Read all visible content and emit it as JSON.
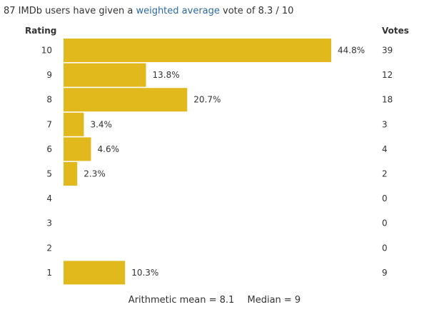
{
  "header": {
    "prefix": "87 IMDb users have given a",
    "link": "weighted average",
    "suffix": "vote of 8.3 / 10"
  },
  "columns": {
    "rating": "Rating",
    "votes": "Votes"
  },
  "footer": {
    "mean": "Arithmetic mean = 8.1",
    "median": "Median = 9"
  },
  "colors": {
    "bar": "#e2b91d",
    "text": "#333333",
    "link": "#2b6aa5"
  },
  "chart_data": {
    "type": "bar",
    "orientation": "horizontal",
    "categories": [
      "10",
      "9",
      "8",
      "7",
      "6",
      "5",
      "4",
      "3",
      "2",
      "1"
    ],
    "values": [
      44.8,
      13.8,
      20.7,
      3.4,
      4.6,
      2.3,
      0,
      0,
      0,
      10.3
    ],
    "value_labels": [
      "44.8%",
      "13.8%",
      "20.7%",
      "3.4%",
      "4.6%",
      "2.3%",
      "",
      "",
      "",
      "10.3%"
    ],
    "votes": [
      "39",
      "12",
      "18",
      "3",
      "4",
      "2",
      "0",
      "0",
      "0",
      "9"
    ],
    "xlim": [
      0,
      44.8
    ],
    "grid": false
  }
}
